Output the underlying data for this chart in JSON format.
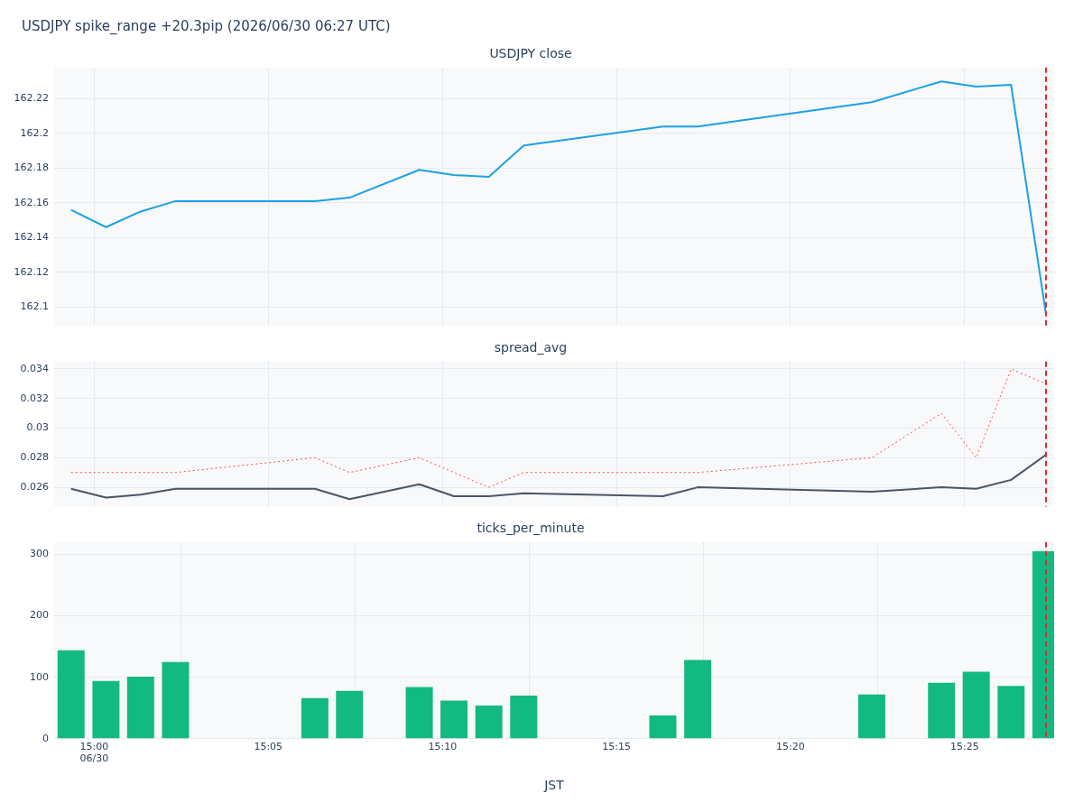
{
  "chart_data": [
    {
      "type": "line",
      "title": "USDJPY close",
      "x": [
        14.9889,
        15.0056,
        15.0222,
        15.0389,
        15.1056,
        15.1222,
        15.1556,
        15.1722,
        15.1889,
        15.2056,
        15.2722,
        15.2889,
        15.3722,
        15.4056,
        15.4222,
        15.4389,
        15.4556
      ],
      "series": [
        {
          "color": "#1ba1e2",
          "values": [
            162.156,
            162.146,
            162.155,
            162.161,
            162.161,
            162.163,
            162.179,
            162.176,
            162.175,
            162.193,
            162.204,
            162.204,
            162.218,
            162.23,
            162.227,
            162.228,
            162.096
          ]
        }
      ],
      "xlim": [
        14.9808,
        15.4595
      ],
      "xticks": [
        {
          "value": 15,
          "label": null
        },
        {
          "value": 15.0833,
          "label": null
        },
        {
          "value": 15.1667,
          "label": null
        },
        {
          "value": 15.25,
          "label": null
        },
        {
          "value": 15.3333,
          "label": null
        },
        {
          "value": 15.4167,
          "label": null
        }
      ],
      "ylim": [
        162.089,
        162.238
      ],
      "yticks": [
        162.1,
        162.12,
        162.14,
        162.16,
        162.18,
        162.2,
        162.22
      ],
      "ref_lines": [
        {
          "axis": "x",
          "value": 15.4556,
          "color": "#e8262b",
          "line_style": "dashed"
        }
      ],
      "grid": true,
      "tick_labels": "y"
    },
    {
      "type": "line",
      "title": "spread_avg",
      "x": [
        14.9889,
        15.0056,
        15.0222,
        15.0389,
        15.1056,
        15.1222,
        15.1556,
        15.1722,
        15.1889,
        15.2056,
        15.2722,
        15.2889,
        15.3722,
        15.4056,
        15.4222,
        15.4389,
        15.4556
      ],
      "series": [
        {
          "color": "#4a5568",
          "line_style": "solid",
          "values": [
            0.0259,
            0.0253,
            0.0255,
            0.0259,
            0.0259,
            0.0252,
            0.0262,
            0.0254,
            0.0254,
            0.0256,
            0.0254,
            0.026,
            0.0257,
            0.026,
            0.0259,
            0.0265,
            0.0282
          ]
        },
        {
          "color": "#ff4d4d",
          "line_style": "dotted",
          "values": [
            0.027,
            0.027,
            0.027,
            0.027,
            0.028,
            0.027,
            0.028,
            0.027,
            0.026,
            0.027,
            0.027,
            0.027,
            0.028,
            0.031,
            0.028,
            0.034,
            0.033
          ]
        }
      ],
      "xlim": [
        14.9808,
        15.4595
      ],
      "xticks": [
        {
          "value": 15,
          "label": null
        },
        {
          "value": 15.0833,
          "label": null
        },
        {
          "value": 15.1667,
          "label": null
        },
        {
          "value": 15.25,
          "label": null
        },
        {
          "value": 15.3333,
          "label": null
        },
        {
          "value": 15.4167,
          "label": null
        }
      ],
      "ylim": [
        0.0247,
        0.0345
      ],
      "yticks": [
        0.026,
        0.028,
        0.03,
        0.032,
        0.034
      ],
      "ref_lines": [
        {
          "axis": "x",
          "value": 15.4556,
          "color": "#e8262b",
          "line_style": "dashed"
        }
      ],
      "grid": true,
      "tick_labels": "y"
    },
    {
      "type": "bar",
      "title": "ticks_per_minute",
      "xlabel": "JST",
      "x": [
        14.9889,
        15.0056,
        15.0222,
        15.0389,
        15.1056,
        15.1222,
        15.1556,
        15.1722,
        15.1889,
        15.2056,
        15.2722,
        15.2889,
        15.3722,
        15.4056,
        15.4222,
        15.4389,
        15.4556
      ],
      "series": [
        {
          "color": "#12b981",
          "values": [
            144,
            94,
            101,
            125,
            66,
            78,
            84,
            62,
            54,
            70,
            38,
            128,
            72,
            91,
            109,
            86,
            305
          ]
        }
      ],
      "xlim": [
        14.9808,
        15.4595
      ],
      "xticks": [
        {
          "value": 15,
          "label": "15:00\n06/30"
        },
        {
          "value": 15.0833,
          "label": "15:05"
        },
        {
          "value": 15.1667,
          "label": "15:10"
        },
        {
          "value": 15.25,
          "label": "15:15"
        },
        {
          "value": 15.3333,
          "label": "15:20"
        },
        {
          "value": 15.4167,
          "label": "15:25"
        }
      ],
      "ylim": [
        0,
        320
      ],
      "yticks": [
        0,
        100,
        200,
        300
      ],
      "ref_lines": [
        {
          "axis": "x",
          "value": 15.4556,
          "color": "#e8262b",
          "line_style": "dashed"
        }
      ],
      "grid": true,
      "annotations": [
        "USDJPY spike_range +20.3pip (2026/06/30 06:27 UTC)"
      ]
    }
  ]
}
